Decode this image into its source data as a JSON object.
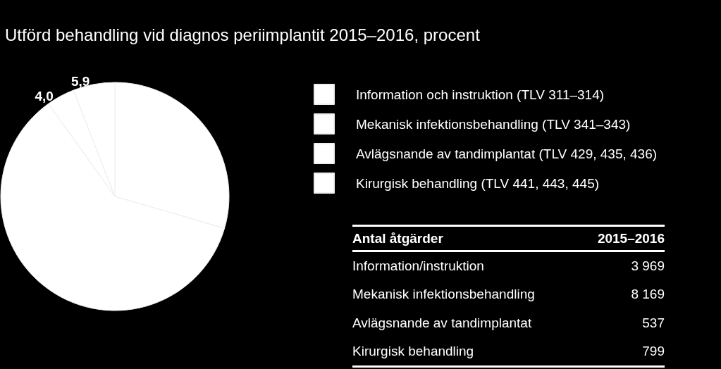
{
  "chart_data": {
    "type": "pie",
    "title": "Utförd behandling vid diagnos periimplantit 2015–2016, procent",
    "categories": [
      "Information och instruktion (TLV 311–314)",
      "Mekanisk infektionsbehandling (TLV 341–343)",
      "Avlägsnande av tandimplantat (TLV 429, 435, 436)",
      "Kirurgisk behandling (TLV 441, 443, 445)"
    ],
    "values": [
      29.5,
      60.6,
      4.0,
      5.9
    ],
    "colors": [
      "#ffffff",
      "#ffffff",
      "#ffffff",
      "#ffffff"
    ],
    "value_labels": [
      null,
      null,
      "4,0",
      "5,9"
    ],
    "legend": "top right",
    "annotations": [
      "Antal åtgärder",
      "2015–2016",
      "Information/instruktion",
      "3 969",
      "Mekanisk infektionsbehandling",
      "8 169",
      "Avlägsnande av tandimplantat",
      "537",
      "Kirurgisk behandling",
      "799"
    ]
  }
}
